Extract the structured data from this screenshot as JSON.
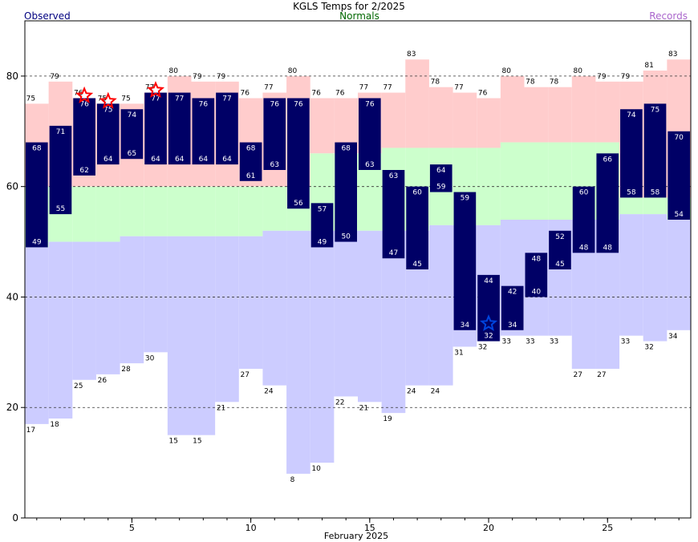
{
  "chart_data": {
    "type": "bar",
    "title": "KGLS Temps for 2/2025",
    "legend": {
      "observed": "Observed",
      "normals": "Normals",
      "records": "Records"
    },
    "xlabel": "February 2025",
    "xlim": [
      0.5,
      28.5
    ],
    "ylim": [
      0,
      90
    ],
    "x_ticks": [
      5,
      10,
      15,
      20,
      25
    ],
    "y_ticks": [
      0,
      20,
      40,
      60,
      80
    ],
    "grid_lines": [
      20,
      40,
      60,
      80
    ],
    "days": [
      1,
      2,
      3,
      4,
      5,
      6,
      7,
      8,
      9,
      10,
      11,
      12,
      13,
      14,
      15,
      16,
      17,
      18,
      19,
      20,
      21,
      22,
      23,
      24,
      25,
      26,
      27,
      28
    ],
    "observed_high": [
      68,
      71,
      76,
      75,
      74,
      77,
      77,
      76,
      77,
      68,
      76,
      76,
      57,
      68,
      76,
      63,
      60,
      64,
      59,
      44,
      42,
      48,
      52,
      60,
      66,
      74,
      75,
      70
    ],
    "observed_low": [
      49,
      55,
      62,
      64,
      65,
      64,
      64,
      64,
      64,
      61,
      63,
      56,
      49,
      50,
      63,
      47,
      45,
      59,
      34,
      32,
      34,
      40,
      45,
      48,
      48,
      58,
      58,
      54
    ],
    "normal_high": [
      60,
      60,
      60,
      60,
      60,
      60,
      60,
      60,
      60,
      60,
      60,
      60,
      66,
      66,
      66,
      67,
      67,
      67,
      67,
      67,
      68,
      68,
      68,
      68,
      68,
      58,
      58,
      58
    ],
    "normal_low": [
      49,
      50,
      50,
      50,
      51,
      51,
      51,
      51,
      51,
      51,
      52,
      52,
      52,
      52,
      52,
      52,
      52,
      53,
      53,
      53,
      54,
      54,
      54,
      54,
      54,
      55,
      55,
      54
    ],
    "record_high": [
      75,
      79,
      76,
      75,
      75,
      77,
      80,
      79,
      79,
      76,
      77,
      80,
      76,
      76,
      77,
      77,
      83,
      78,
      77,
      76,
      80,
      78,
      78,
      80,
      79,
      79,
      81,
      83
    ],
    "record_low": [
      17,
      18,
      25,
      26,
      28,
      30,
      15,
      15,
      21,
      27,
      24,
      8,
      10,
      22,
      21,
      19,
      24,
      24,
      31,
      32,
      33,
      33,
      33,
      27,
      27,
      33,
      32,
      34
    ],
    "record_high_set_days": [
      3,
      4,
      6
    ],
    "record_low_set_days": [
      20
    ],
    "colors": {
      "observed": "#000066",
      "normal": "#ccffcc",
      "record_high": "#ffcccc",
      "record_low": "#ccccff",
      "record_high_star": "#ff0000",
      "record_low_star": "#0044dd",
      "observed_legend": "#000080",
      "normals_legend": "#006600",
      "records_legend": "#aa66cc"
    }
  }
}
